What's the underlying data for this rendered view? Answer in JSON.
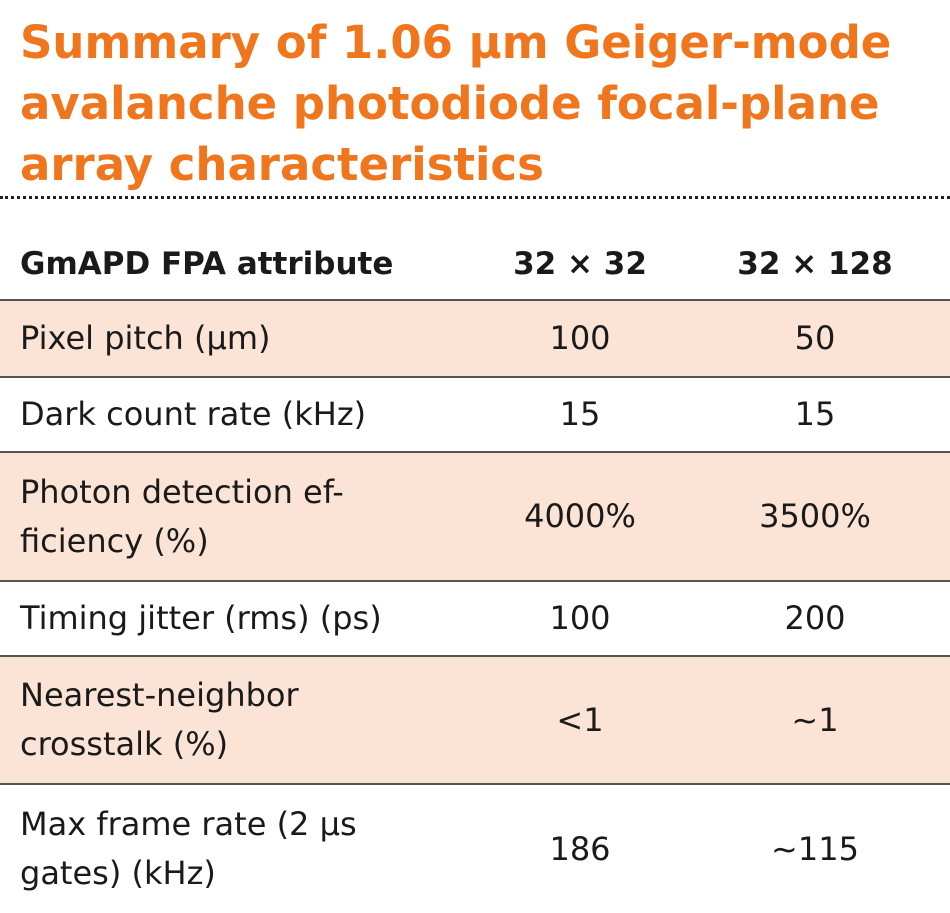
{
  "title": {
    "lines": [
      "Summary of 1.06 µm Geiger-mode",
      "avalanche photodiode focal-plane",
      "array characteristics"
    ]
  },
  "table": {
    "headers": [
      "GmAPD FPA attribute",
      "32 × 32",
      "32 × 128"
    ],
    "rows": [
      {
        "attribute": "Pixel pitch (µm)",
        "col_32x32": "100",
        "col_32x128": "50"
      },
      {
        "attribute": "Dark count rate (kHz)",
        "col_32x32": "15",
        "col_32x128": "15"
      },
      {
        "attribute": "Photon detection ef-\nficiency (%)",
        "col_32x32": "4000%",
        "col_32x128": "3500%"
      },
      {
        "attribute": "Timing jitter (rms) (ps)",
        "col_32x32": "100",
        "col_32x128": "200"
      },
      {
        "attribute": "Nearest-neighbor\ncrosstalk (%)",
        "col_32x32": "<1",
        "col_32x128": "~1"
      },
      {
        "attribute": "Max frame rate (2 µs\ngates) (kHz)",
        "col_32x32": "186",
        "col_32x128": "~115"
      }
    ]
  },
  "colors": {
    "title": "#f0761e",
    "row_shade": "#fbe4d6",
    "rule": "#555555"
  }
}
